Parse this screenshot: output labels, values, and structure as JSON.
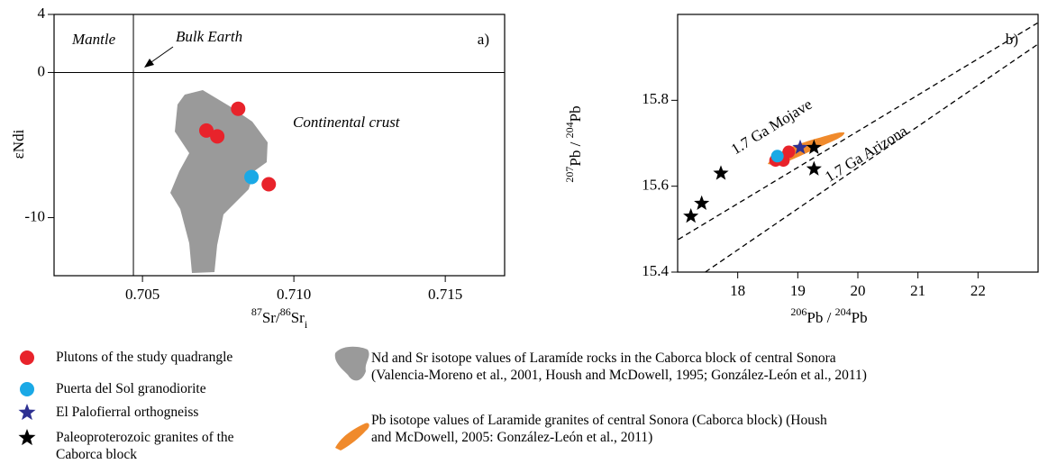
{
  "chart_data": [
    {
      "type": "scatter",
      "panel_label": "a)",
      "xlabel": [
        {
          "text": "87",
          "sup": true
        },
        {
          "text": "Sr/"
        },
        {
          "text": "86",
          "sup": true
        },
        {
          "text": "Sr"
        },
        {
          "text": "i",
          "sub": true
        }
      ],
      "ylabel": [
        {
          "text": "εNdi"
        }
      ],
      "xlim": [
        0.70208,
        0.71696
      ],
      "xticks": [
        0.705,
        {
          "value": 0.71,
          "label": "0.710"
        },
        0.715
      ],
      "ylim": [
        -14,
        4
      ],
      "yticks": [
        4,
        0,
        -10
      ],
      "vlines": [
        0.7047
      ],
      "hlines": [
        0
      ],
      "annotations": [
        "Mantle",
        "Bulk Earth",
        "Continental crust"
      ],
      "field": {
        "color": "#9a9a9a",
        "label": [
          "Nd and Sr isotope values of Laramíde rocks in the Caborca block of central Sonora",
          "(Valencia-Moreno et al., 2001, Housh and McDowell, 1995; González-León et al., 2011)"
        ]
      },
      "series": [
        {
          "name": "Plutons of the study quadrangle",
          "color": "#e8232b",
          "marker": "circle",
          "x": [
            0.70816,
            0.70711,
            0.70747,
            0.70917
          ],
          "values": [
            -2.5,
            -4.0,
            -4.4,
            -7.7
          ]
        },
        {
          "name": "Puerta del Sol granodiorite",
          "color": "#1aa9e6",
          "marker": "circle",
          "x": [
            0.7086
          ],
          "values": [
            -7.2
          ]
        }
      ]
    },
    {
      "type": "scatter",
      "panel_label": "b)",
      "xlabel": [
        {
          "text": "206",
          "sup": true
        },
        {
          "text": "Pb / "
        },
        {
          "text": "204",
          "sup": true
        },
        {
          "text": "Pb"
        }
      ],
      "ylabel": [
        {
          "text": "207",
          "sup": true
        },
        {
          "text": "Pb / "
        },
        {
          "text": "204",
          "sup": true
        },
        {
          "text": "Pb"
        }
      ],
      "xlim": [
        17,
        23
      ],
      "xticks": [
        18,
        19,
        20,
        21,
        22
      ],
      "ylim": [
        15.4,
        16.0
      ],
      "yticks": [
        15.4,
        15.6,
        15.8
      ],
      "lines": [
        {
          "name": "1.7 Ga Mojave",
          "x": [
            17.01,
            22.99
          ],
          "y": [
            15.476,
            15.98
          ]
        },
        {
          "name": "1.7 Ga Arizona",
          "x": [
            17.46,
            22.99
          ],
          "y": [
            15.4,
            15.93
          ]
        }
      ],
      "field": {
        "color": "#f08a2c",
        "label": [
          "Pb isotope values of Laramide granites of central Sonora (Caborca block) (Housh",
          "and McDowell, 2005: González-León et al., 2011)"
        ]
      },
      "series": [
        {
          "color": "#e8232b",
          "marker": "circle",
          "x": [
            18.85,
            18.63,
            18.76
          ],
          "values": [
            15.68,
            15.66,
            15.66
          ]
        },
        {
          "color": "#1aa9e6",
          "marker": "circle",
          "x": [
            18.66
          ],
          "values": [
            15.67
          ]
        },
        {
          "name": "El Palofierral orthogneiss",
          "color": "#2e3192",
          "marker": "star",
          "x": [
            19.04
          ],
          "values": [
            15.69
          ]
        },
        {
          "name": "Paleoproterozoic granites of the Caborca block",
          "color": "#000000",
          "marker": "star",
          "x": [
            17.4,
            17.22,
            17.72,
            19.27,
            19.27
          ],
          "values": [
            15.56,
            15.53,
            15.63,
            15.64,
            15.69
          ]
        }
      ]
    }
  ]
}
